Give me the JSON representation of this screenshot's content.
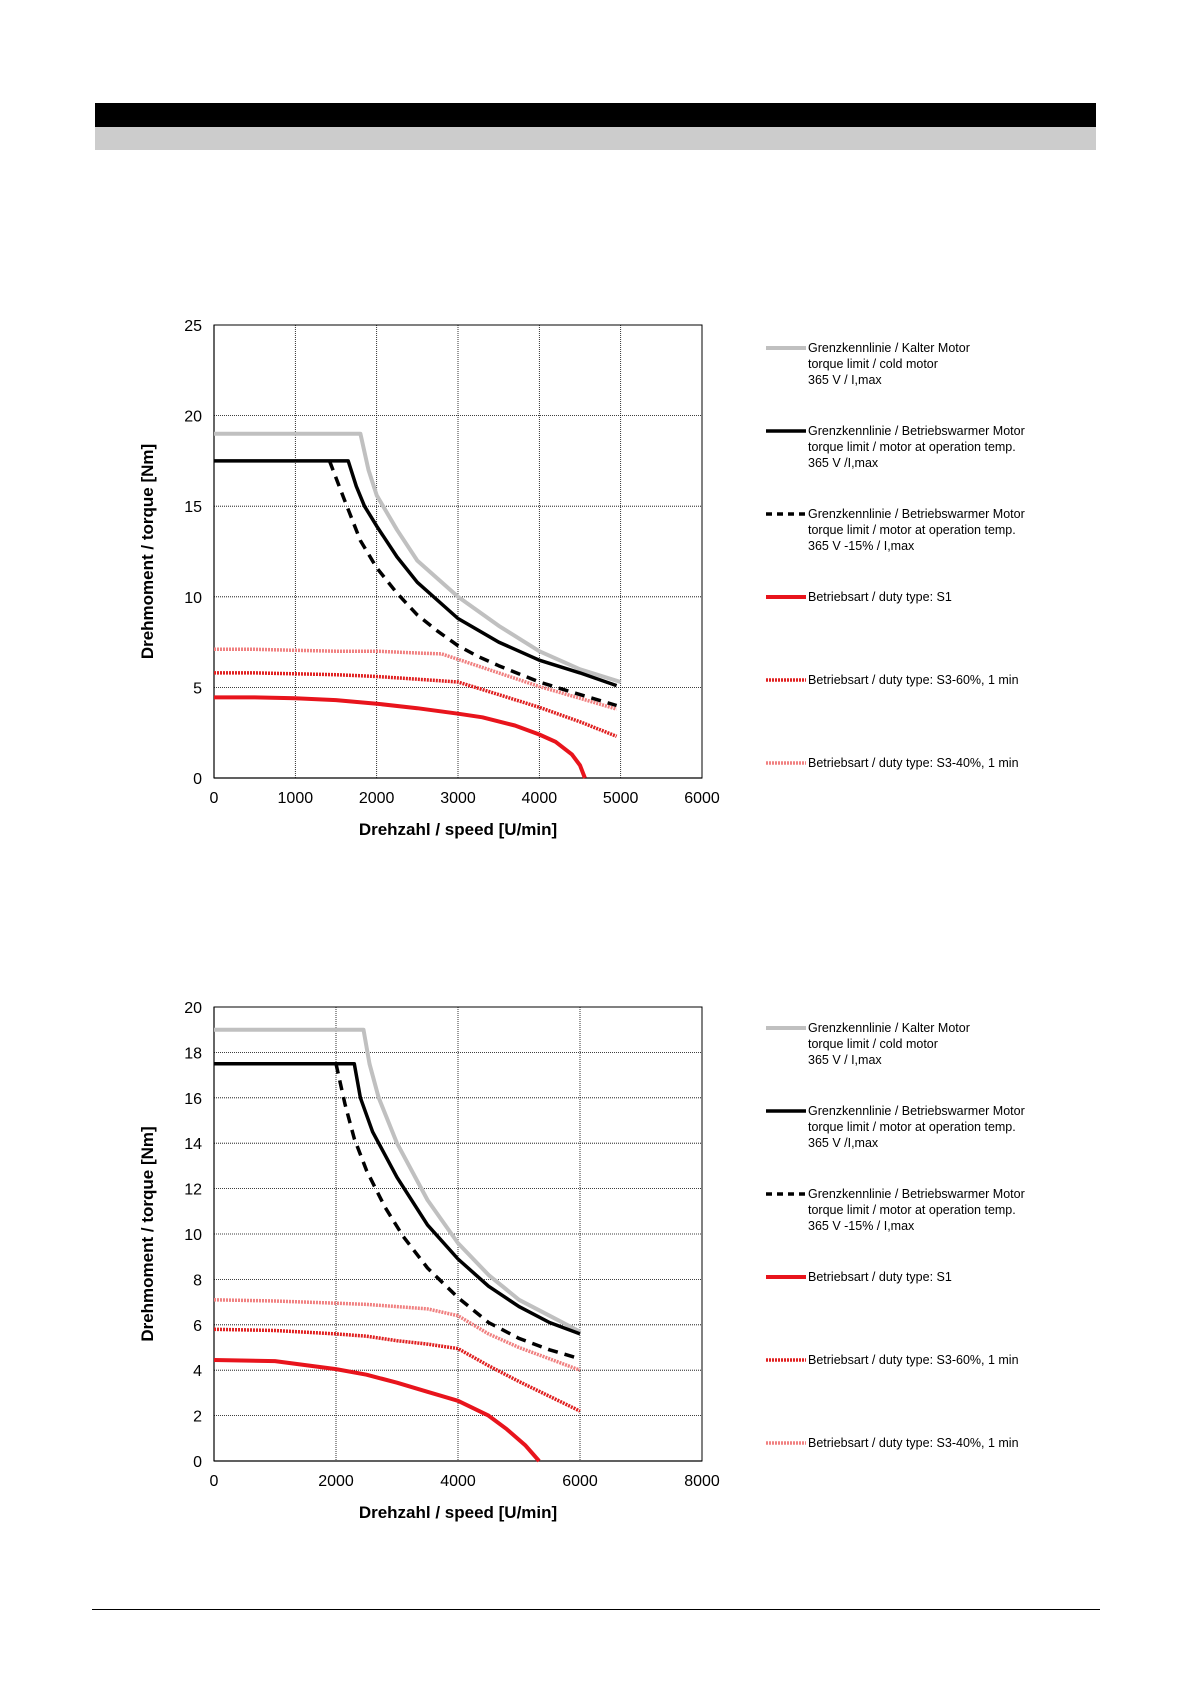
{
  "legend": [
    {
      "lines": [
        "Grenzkennlinie / Kalter Motor",
        "torque limit / cold  motor",
        "365 V / I,max"
      ],
      "style": "cold"
    },
    {
      "lines": [
        "Grenzkennlinie / Betriebswarmer Motor",
        "torque limit / motor at operation temp.",
        "365 V /I,max"
      ],
      "style": "warm"
    },
    {
      "lines": [
        "Grenzkennlinie / Betriebswarmer Motor",
        "torque limit / motor at operation temp.",
        "365 V  -15% / I,max"
      ],
      "style": "warm-dashed"
    },
    {
      "lines": [
        "Betriebsart / duty type: S1"
      ],
      "style": "s1"
    },
    {
      "lines": [
        "Betriebsart / duty type: S3-60%, 1 min"
      ],
      "style": "s3-60"
    },
    {
      "lines": [
        "Betriebsart / duty type: S3-40%, 1 min"
      ],
      "style": "s3-40"
    }
  ],
  "colors": {
    "cold": "#c0c0c0",
    "warm": "#000000",
    "s1": "#e8141c",
    "s3_60": "#e02020",
    "s3_40": "#f08080",
    "grid": "#000000"
  },
  "chart_data": [
    {
      "type": "line",
      "xlabel": "Drehzahl / speed [U/min]",
      "ylabel": "Drehmoment / torque [Nm]",
      "xlim": [
        0,
        6000
      ],
      "ylim": [
        0,
        25
      ],
      "xticks": [
        0,
        1000,
        2000,
        3000,
        4000,
        5000,
        6000
      ],
      "yticks": [
        0,
        5,
        10,
        15,
        20,
        25
      ],
      "grid": true,
      "legend_position": "right",
      "series": [
        {
          "name": "Grenzkennlinie / Kalter Motor",
          "style": "cold",
          "points": [
            [
              0,
              19
            ],
            [
              1800,
              19
            ],
            [
              1900,
              17
            ],
            [
              2000,
              15.6
            ],
            [
              2250,
              13.7
            ],
            [
              2500,
              12
            ],
            [
              3000,
              10
            ],
            [
              3500,
              8.4
            ],
            [
              4000,
              7
            ],
            [
              4500,
              6
            ],
            [
              5000,
              5.3
            ]
          ]
        },
        {
          "name": "Grenzkennlinie / Betriebswarmer Motor",
          "style": "warm",
          "points": [
            [
              0,
              17.5
            ],
            [
              1650,
              17.5
            ],
            [
              1750,
              16.1
            ],
            [
              1850,
              15
            ],
            [
              2000,
              13.9
            ],
            [
              2250,
              12.2
            ],
            [
              2500,
              10.8
            ],
            [
              3000,
              8.8
            ],
            [
              3500,
              7.5
            ],
            [
              4000,
              6.5
            ],
            [
              4500,
              5.8
            ],
            [
              4950,
              5.1
            ]
          ]
        },
        {
          "name": "Grenzkennlinie / Betriebswarmer Motor 365 V -15%",
          "style": "warm-dashed",
          "points": [
            [
              1420,
              17.5
            ],
            [
              1600,
              15.4
            ],
            [
              1800,
              13.1
            ],
            [
              2000,
              11.6
            ],
            [
              2250,
              10.2
            ],
            [
              2500,
              9
            ],
            [
              2750,
              8.1
            ],
            [
              3000,
              7.3
            ],
            [
              3250,
              6.7
            ],
            [
              3500,
              6.2
            ],
            [
              4000,
              5.3
            ],
            [
              4500,
              4.6
            ],
            [
              4950,
              4
            ]
          ]
        },
        {
          "name": "Betriebsart / duty type: S1",
          "style": "s1",
          "points": [
            [
              0,
              4.45
            ],
            [
              500,
              4.45
            ],
            [
              1000,
              4.4
            ],
            [
              1500,
              4.3
            ],
            [
              2000,
              4.1
            ],
            [
              2500,
              3.85
            ],
            [
              3000,
              3.55
            ],
            [
              3300,
              3.35
            ],
            [
              3700,
              2.9
            ],
            [
              4000,
              2.4
            ],
            [
              4200,
              2
            ],
            [
              4400,
              1.3
            ],
            [
              4500,
              0.7
            ],
            [
              4560,
              0
            ]
          ]
        },
        {
          "name": "Betriebsart / duty type: S3-60%, 1 min",
          "style": "s3-60",
          "points": [
            [
              0,
              5.8
            ],
            [
              500,
              5.8
            ],
            [
              1000,
              5.75
            ],
            [
              1500,
              5.7
            ],
            [
              2000,
              5.6
            ],
            [
              2500,
              5.45
            ],
            [
              3000,
              5.3
            ],
            [
              3500,
              4.6
            ],
            [
              4000,
              3.9
            ],
            [
              4500,
              3.1
            ],
            [
              4950,
              2.3
            ]
          ]
        },
        {
          "name": "Betriebsart / duty type: S3-40%, 1 min",
          "style": "s3-40",
          "points": [
            [
              0,
              7.1
            ],
            [
              500,
              7.1
            ],
            [
              1000,
              7.05
            ],
            [
              1500,
              7
            ],
            [
              2000,
              7
            ],
            [
              2500,
              6.9
            ],
            [
              2800,
              6.85
            ],
            [
              3000,
              6.55
            ],
            [
              3500,
              5.8
            ],
            [
              4000,
              5.05
            ],
            [
              4500,
              4.4
            ],
            [
              4950,
              3.8
            ]
          ]
        }
      ]
    },
    {
      "type": "line",
      "xlabel": "Drehzahl / speed [U/min]",
      "ylabel": "Drehmoment / torque [Nm]",
      "xlim": [
        0,
        8000
      ],
      "ylim": [
        0,
        20
      ],
      "xticks": [
        0,
        2000,
        4000,
        6000,
        8000
      ],
      "yticks": [
        0,
        2,
        4,
        6,
        8,
        10,
        12,
        14,
        16,
        18,
        20
      ],
      "grid": true,
      "legend_position": "right",
      "series": [
        {
          "name": "Grenzkennlinie / Kalter Motor",
          "style": "cold",
          "points": [
            [
              0,
              19
            ],
            [
              2450,
              19
            ],
            [
              2550,
              17.5
            ],
            [
              2700,
              16
            ],
            [
              3000,
              14
            ],
            [
              3500,
              11.5
            ],
            [
              4000,
              9.6
            ],
            [
              4500,
              8.2
            ],
            [
              5000,
              7.1
            ],
            [
              5500,
              6.4
            ],
            [
              6000,
              5.7
            ]
          ]
        },
        {
          "name": "Grenzkennlinie / Betriebswarmer Motor",
          "style": "warm",
          "points": [
            [
              0,
              17.5
            ],
            [
              2300,
              17.5
            ],
            [
              2400,
              16
            ],
            [
              2600,
              14.5
            ],
            [
              3000,
              12.5
            ],
            [
              3500,
              10.4
            ],
            [
              4000,
              8.9
            ],
            [
              4500,
              7.7
            ],
            [
              5000,
              6.8
            ],
            [
              5500,
              6.1
            ],
            [
              6000,
              5.6
            ]
          ]
        },
        {
          "name": "Grenzkennlinie / Betriebswarmer Motor 365 V -15%",
          "style": "warm-dashed",
          "points": [
            [
              2000,
              17.5
            ],
            [
              2150,
              15.7
            ],
            [
              2300,
              14.2
            ],
            [
              2500,
              12.8
            ],
            [
              2800,
              11.2
            ],
            [
              3100,
              9.9
            ],
            [
              3500,
              8.5
            ],
            [
              4000,
              7.2
            ],
            [
              4500,
              6.1
            ],
            [
              5000,
              5.4
            ],
            [
              5500,
              4.9
            ],
            [
              6000,
              4.5
            ]
          ]
        },
        {
          "name": "Betriebsart / duty type: S1",
          "style": "s1",
          "points": [
            [
              0,
              4.45
            ],
            [
              1000,
              4.4
            ],
            [
              2000,
              4.05
            ],
            [
              2500,
              3.8
            ],
            [
              3000,
              3.45
            ],
            [
              3500,
              3.05
            ],
            [
              4000,
              2.65
            ],
            [
              4500,
              2
            ],
            [
              4800,
              1.4
            ],
            [
              5100,
              0.7
            ],
            [
              5330,
              0
            ]
          ]
        },
        {
          "name": "Betriebsart / duty type: S3-60%, 1 min",
          "style": "s3-60",
          "points": [
            [
              0,
              5.8
            ],
            [
              1000,
              5.75
            ],
            [
              2000,
              5.6
            ],
            [
              2500,
              5.5
            ],
            [
              3000,
              5.3
            ],
            [
              3500,
              5.15
            ],
            [
              4000,
              4.95
            ],
            [
              4500,
              4.2
            ],
            [
              5000,
              3.5
            ],
            [
              5500,
              2.85
            ],
            [
              6000,
              2.2
            ]
          ]
        },
        {
          "name": "Betriebsart / duty type: S3-40%, 1 min",
          "style": "s3-40",
          "points": [
            [
              0,
              7.1
            ],
            [
              1000,
              7.05
            ],
            [
              2000,
              6.95
            ],
            [
              2500,
              6.9
            ],
            [
              3000,
              6.8
            ],
            [
              3500,
              6.7
            ],
            [
              4000,
              6.4
            ],
            [
              4500,
              5.6
            ],
            [
              5000,
              5
            ],
            [
              5500,
              4.5
            ],
            [
              6000,
              4
            ]
          ]
        }
      ]
    }
  ]
}
